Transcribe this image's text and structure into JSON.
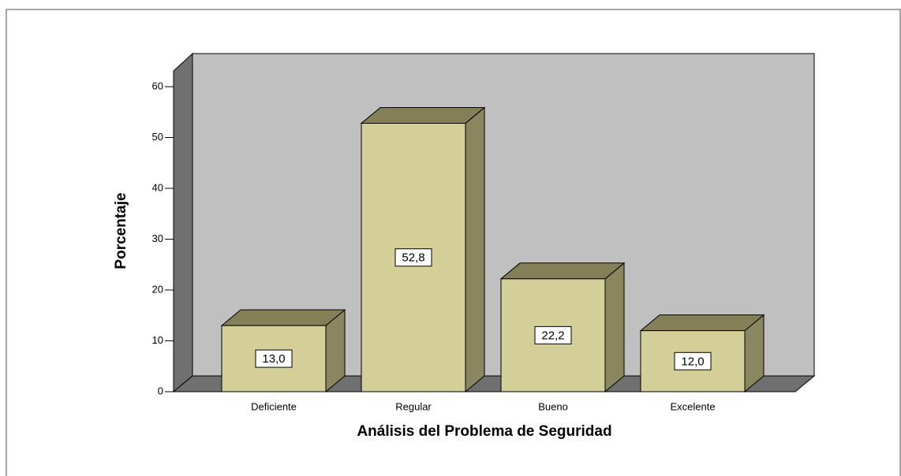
{
  "chart_data": {
    "type": "bar3d",
    "x_label": "Análisis del Problema de Seguridad",
    "y_label": "Porcentaje",
    "categories": [
      "Deficiente",
      "Regular",
      "Bueno",
      "Excelente"
    ],
    "values": [
      13.0,
      52.8,
      22.2,
      12.0
    ],
    "value_labels": [
      "13,0",
      "52,8",
      "22,2",
      "12,0"
    ],
    "color": "#d4cf98",
    "ylim": [
      0,
      60
    ],
    "yticks": [
      0,
      10,
      20,
      30,
      40,
      50,
      60
    ]
  }
}
